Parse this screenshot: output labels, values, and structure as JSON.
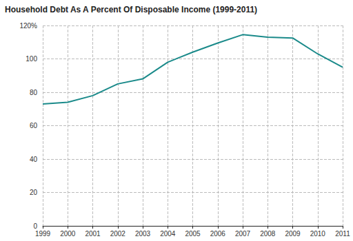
{
  "chart_data": {
    "type": "line",
    "title": "Household Debt As A Percent Of Disposable Income (1999-2011)",
    "categories": [
      "1999",
      "2000",
      "2001",
      "2002",
      "2003",
      "2004",
      "2005",
      "2006",
      "2007",
      "2008",
      "2009",
      "2010",
      "2011"
    ],
    "values": [
      73,
      74,
      78,
      85,
      88,
      98,
      104,
      109.5,
      114.5,
      113,
      112.5,
      103,
      95
    ],
    "color": "#1a8a8a",
    "ylim": [
      0,
      120
    ],
    "yticks": [
      0,
      20,
      40,
      60,
      80,
      100,
      {
        "value": 120,
        "label": "120%"
      }
    ],
    "grid": true
  }
}
